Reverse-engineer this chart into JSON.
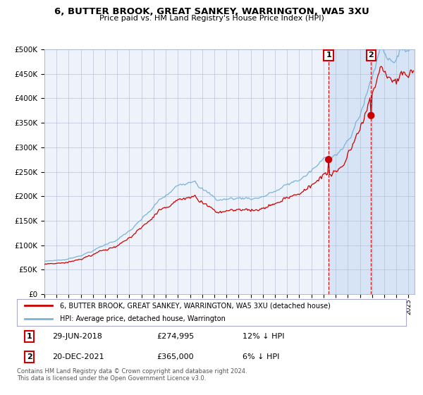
{
  "title": "6, BUTTER BROOK, GREAT SANKEY, WARRINGTON, WA5 3XU",
  "subtitle": "Price paid vs. HM Land Registry's House Price Index (HPI)",
  "hpi_color": "#7ab4d8",
  "price_color": "#cc0000",
  "bg_color": "#ffffff",
  "plot_bg_color": "#eef2fb",
  "highlight_bg_color": "#d6e4f5",
  "grid_color": "#b0b8d0",
  "purchase1_price": 274995,
  "purchase2_price": 365000,
  "legend1": "6, BUTTER BROOK, GREAT SANKEY, WARRINGTON, WA5 3XU (detached house)",
  "legend2": "HPI: Average price, detached house, Warrington",
  "footer": "Contains HM Land Registry data © Crown copyright and database right 2024.\nThis data is licensed under the Open Government Licence v3.0.",
  "ylim": [
    0,
    500000
  ],
  "yticks": [
    0,
    50000,
    100000,
    150000,
    200000,
    250000,
    300000,
    350000,
    400000,
    450000,
    500000
  ],
  "start_year": 1995,
  "end_year": 2025
}
